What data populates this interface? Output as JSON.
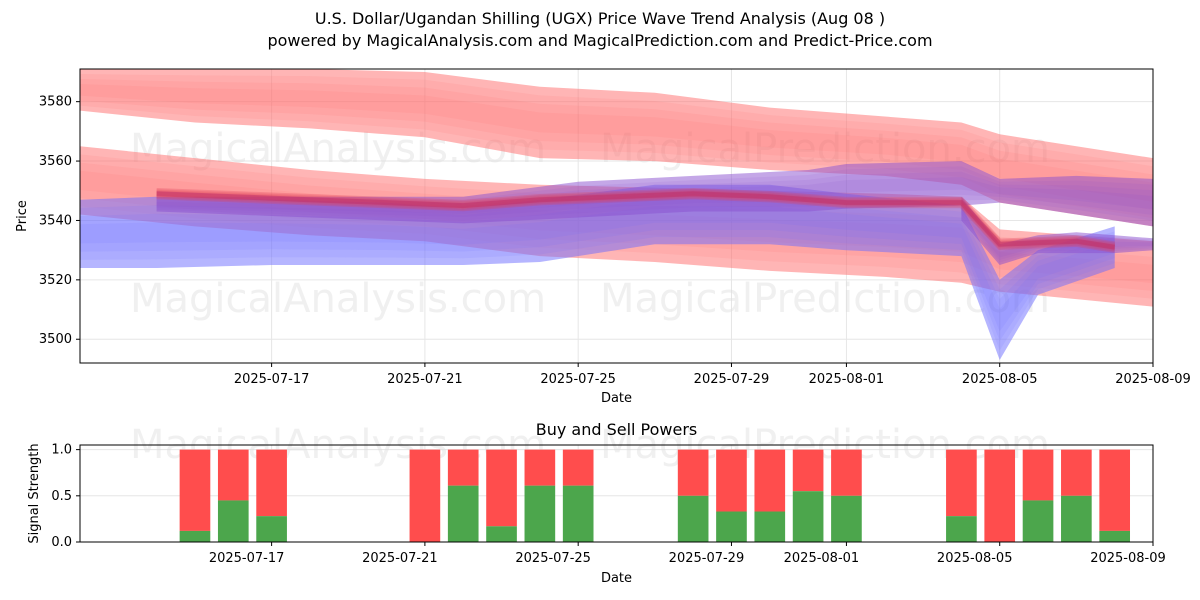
{
  "title": "U.S. Dollar/Ugandan Shilling (UGX) Price Wave Trend Analysis (Aug 08 )",
  "subtitle": "powered by MagicalAnalysis.com and MagicalPrediction.com and Predict-Price.com",
  "watermarks": [
    "MagicalAnalysis.com",
    "MagicalPrediction.com"
  ],
  "colors": {
    "red_band": "#ff6b6b",
    "blue_band": "#6b6bff",
    "purple_band": "#8a4fd0",
    "buy": "#4ca64c",
    "sell": "#ff4d4d",
    "grid": "#e6e6e6"
  },
  "chart_data": [
    {
      "type": "area",
      "xlabel": "Date",
      "ylabel": "Price",
      "ylim": [
        3492,
        3591
      ],
      "xlim": [
        "2025-07-12",
        "2025-08-09"
      ],
      "x_ticks": [
        "2025-07-17",
        "2025-07-21",
        "2025-07-25",
        "2025-07-29",
        "2025-08-01",
        "2025-08-05",
        "2025-08-09"
      ],
      "y_ticks": [
        3500,
        3520,
        3540,
        3560,
        3580
      ],
      "grid": true,
      "series": [
        {
          "kind": "band",
          "color": "red",
          "x": [
            "2025-07-12",
            "2025-07-15",
            "2025-07-18",
            "2025-07-21",
            "2025-07-24",
            "2025-07-27",
            "2025-07-30",
            "2025-08-02",
            "2025-08-04",
            "2025-08-05",
            "2025-08-09"
          ],
          "upper": [
            3591,
            3591,
            3591,
            3590,
            3585,
            3583,
            3578,
            3575,
            3573,
            3569,
            3561
          ],
          "lower": [
            3577,
            3573,
            3571,
            3568,
            3561,
            3560,
            3557,
            3555,
            3552,
            3546,
            3538
          ]
        },
        {
          "kind": "band",
          "color": "red",
          "x": [
            "2025-07-12",
            "2025-07-15",
            "2025-07-18",
            "2025-07-21",
            "2025-07-24",
            "2025-07-27",
            "2025-07-30",
            "2025-08-02",
            "2025-08-04",
            "2025-08-05",
            "2025-08-09"
          ],
          "upper": [
            3565,
            3561,
            3557,
            3554,
            3552,
            3551,
            3550,
            3549,
            3548,
            3537,
            3533
          ],
          "lower": [
            3542,
            3538,
            3535,
            3533,
            3528,
            3526,
            3523,
            3521,
            3519,
            3516,
            3511
          ]
        },
        {
          "kind": "band",
          "color": "blue",
          "x": [
            "2025-07-12",
            "2025-07-14",
            "2025-07-17",
            "2025-07-20",
            "2025-07-22",
            "2025-07-24",
            "2025-07-27",
            "2025-07-30",
            "2025-08-01",
            "2025-08-04",
            "2025-08-05",
            "2025-08-06",
            "2025-08-08"
          ],
          "upper": [
            3547,
            3548,
            3547,
            3546,
            3544,
            3547,
            3552,
            3552,
            3549,
            3545,
            3520,
            3530,
            3538
          ],
          "lower": [
            3524,
            3524,
            3525,
            3525,
            3525,
            3526,
            3532,
            3532,
            3530,
            3528,
            3493,
            3515,
            3524
          ]
        },
        {
          "kind": "band",
          "color": "purple",
          "x": [
            "2025-07-14",
            "2025-07-18",
            "2025-07-22",
            "2025-07-25",
            "2025-07-28",
            "2025-07-31",
            "2025-08-01",
            "2025-08-04",
            "2025-08-05",
            "2025-08-07",
            "2025-08-09"
          ],
          "upper": [
            3548,
            3548,
            3548,
            3553,
            3555,
            3557,
            3559,
            3560,
            3554,
            3555,
            3554
          ],
          "lower": [
            3543,
            3541,
            3539,
            3541,
            3543,
            3543,
            3544,
            3545,
            3546,
            3542,
            3538
          ]
        },
        {
          "kind": "band",
          "color": "purple",
          "x": [
            "2025-08-04",
            "2025-08-05",
            "2025-08-06",
            "2025-08-07",
            "2025-08-08",
            "2025-08-09"
          ],
          "upper": [
            3548,
            3532,
            3535,
            3536,
            3535,
            3534
          ],
          "lower": [
            3540,
            3525,
            3529,
            3529,
            3529,
            3530
          ]
        },
        {
          "kind": "center",
          "color": "red",
          "x": [
            "2025-07-14",
            "2025-07-16",
            "2025-07-18",
            "2025-07-20",
            "2025-07-22",
            "2025-07-24",
            "2025-07-26",
            "2025-07-28",
            "2025-07-30",
            "2025-08-01",
            "2025-08-04",
            "2025-08-05",
            "2025-08-07",
            "2025-08-08"
          ],
          "y": [
            3549,
            3548,
            3547,
            3546,
            3545,
            3547,
            3548,
            3549,
            3548,
            3546,
            3546,
            3532,
            3533,
            3531
          ]
        }
      ]
    },
    {
      "type": "bar",
      "title": "Buy and Sell Powers",
      "xlabel": "Date",
      "ylabel": "Signal Strength",
      "ylim": [
        0,
        1.05
      ],
      "y_ticks": [
        0.0,
        0.5,
        1.0
      ],
      "x_ticks": [
        "2025-07-17",
        "2025-07-21",
        "2025-07-25",
        "2025-07-29",
        "2025-08-01",
        "2025-08-05",
        "2025-08-09"
      ],
      "grid": true,
      "x": [
        "2025-07-15",
        "2025-07-16",
        "2025-07-17",
        "2025-07-21",
        "2025-07-22",
        "2025-07-23",
        "2025-07-24",
        "2025-07-25",
        "2025-07-28",
        "2025-07-29",
        "2025-07-30",
        "2025-07-31",
        "2025-08-01",
        "2025-08-04",
        "2025-08-05",
        "2025-08-06",
        "2025-08-07",
        "2025-08-08"
      ],
      "series": [
        {
          "name": "Buy",
          "values": [
            0.12,
            0.45,
            0.28,
            0.0,
            0.61,
            0.17,
            0.61,
            0.61,
            0.5,
            0.33,
            0.33,
            0.55,
            0.5,
            0.28,
            0.0,
            0.45,
            0.5,
            0.12
          ]
        },
        {
          "name": "Sell",
          "values": [
            0.88,
            0.55,
            0.72,
            1.0,
            0.39,
            0.83,
            0.39,
            0.39,
            0.5,
            0.67,
            0.67,
            0.45,
            0.5,
            0.72,
            1.0,
            0.55,
            0.5,
            0.88
          ]
        }
      ]
    }
  ]
}
